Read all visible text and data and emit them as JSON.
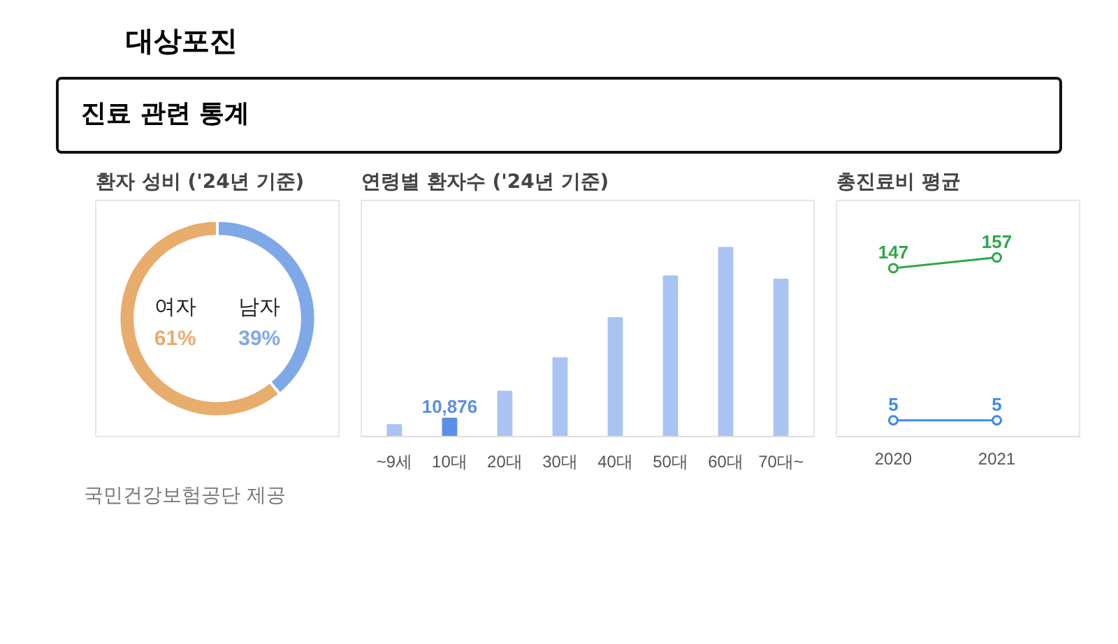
{
  "chart_data": [
    {
      "type": "donut",
      "title": "환자 성비",
      "subtitle": "('24년 기준)",
      "annotations": [
        "대상포진",
        "진료 관련 통계",
        "국민건강보험공단 제공"
      ],
      "categories": [
        "여자",
        "남자"
      ],
      "values": [
        61,
        39
      ],
      "colors": [
        "#e8ac6c",
        "#7fa8e8"
      ],
      "value_labels": [
        "61%",
        "39%"
      ]
    },
    {
      "type": "bar",
      "title": "연령별 환자수",
      "subtitle": "('24년 기준)",
      "categories": [
        "~9세",
        "10대",
        "20대",
        "30대",
        "40대",
        "50대",
        "60대",
        "70대~"
      ],
      "values": [
        7000,
        10876,
        27000,
        47000,
        71000,
        96000,
        113000,
        94000
      ],
      "colors": [
        "#a9c4f2",
        "#5b8ee6",
        "#a9c4f2",
        "#a9c4f2",
        "#a9c4f2",
        "#a9c4f2",
        "#a9c4f2",
        "#a9c4f2"
      ],
      "value_labels": [
        null,
        "10,876",
        null,
        null,
        null,
        null,
        null,
        null
      ]
    },
    {
      "type": "line",
      "title": "총진료비 평균",
      "categories": [
        "2020",
        "2021"
      ],
      "marker": "circle",
      "data_labels": true,
      "series": [
        {
          "color": "#2ea84a",
          "values": [
            147,
            157
          ]
        },
        {
          "color": "#3d8be8",
          "values": [
            5,
            5
          ]
        }
      ]
    }
  ]
}
